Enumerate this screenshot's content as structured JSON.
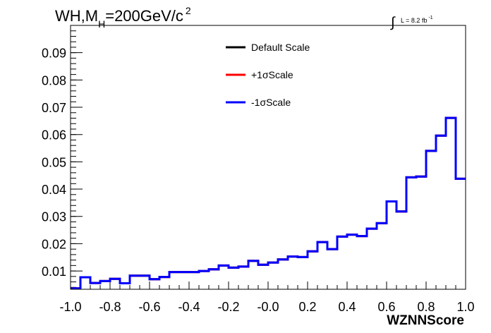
{
  "chart_data": {
    "type": "line",
    "title_parts": [
      "WH,M",
      "H",
      "=200GeV/c",
      "2"
    ],
    "lumi_parts": [
      "∫",
      "L = 8.2 fb",
      "-1"
    ],
    "xlabel": "WZNNScore",
    "ylabel": "",
    "xlim": [
      -1.0,
      1.0
    ],
    "ylim": [
      0.0033,
      0.1
    ],
    "x_ticks": [
      "-1.0",
      "-0.8",
      "-0.6",
      "-0.4",
      "-0.2",
      "-0.0",
      "0.2",
      "0.4",
      "0.6",
      "0.8",
      "1.0"
    ],
    "y_ticks": [
      "0.01",
      "0.02",
      "0.03",
      "0.04",
      "0.05",
      "0.06",
      "0.07",
      "0.08",
      "0.09"
    ],
    "grid": false,
    "legend_position": "top-center",
    "bin_edges": [
      -1.0,
      -0.95,
      -0.9,
      -0.85,
      -0.8,
      -0.75,
      -0.7,
      -0.65,
      -0.6,
      -0.55,
      -0.5,
      -0.45,
      -0.4,
      -0.35,
      -0.3,
      -0.25,
      -0.2,
      -0.15,
      -0.1,
      -0.05,
      0.0,
      0.05,
      0.1,
      0.15,
      0.2,
      0.25,
      0.3,
      0.35,
      0.4,
      0.45,
      0.5,
      0.55,
      0.6,
      0.65,
      0.7,
      0.75,
      0.8,
      0.85,
      0.9,
      0.95,
      1.0
    ],
    "series": [
      {
        "name": "Default Scale",
        "color": "#000000",
        "values": [
          0.0036,
          0.0077,
          0.0056,
          0.0063,
          0.0071,
          0.0055,
          0.0083,
          0.0083,
          0.007,
          0.0078,
          0.0096,
          0.0096,
          0.0096,
          0.01,
          0.0106,
          0.012,
          0.0112,
          0.0116,
          0.0137,
          0.0123,
          0.0131,
          0.0142,
          0.0153,
          0.0151,
          0.0172,
          0.0206,
          0.018,
          0.0226,
          0.0233,
          0.0228,
          0.0255,
          0.0275,
          0.0355,
          0.0318,
          0.0443,
          0.0446,
          0.054,
          0.0596,
          0.0661,
          0.0438
        ]
      },
      {
        "name": "+1σScale",
        "color": "#ff0000",
        "values": [
          0.0036,
          0.0077,
          0.0056,
          0.0063,
          0.0071,
          0.0055,
          0.0083,
          0.0083,
          0.007,
          0.0078,
          0.0096,
          0.0096,
          0.0096,
          0.01,
          0.0106,
          0.012,
          0.0112,
          0.0116,
          0.0137,
          0.0123,
          0.0131,
          0.0142,
          0.0153,
          0.0151,
          0.0172,
          0.0206,
          0.018,
          0.0226,
          0.0233,
          0.0228,
          0.0255,
          0.0275,
          0.0355,
          0.0318,
          0.0443,
          0.0446,
          0.054,
          0.0596,
          0.0661,
          0.0438
        ]
      },
      {
        "name": "-1σScale",
        "color": "#0000ff",
        "values": [
          0.0036,
          0.0077,
          0.0056,
          0.0063,
          0.0071,
          0.0055,
          0.0083,
          0.0083,
          0.007,
          0.0078,
          0.0096,
          0.0096,
          0.0096,
          0.01,
          0.0106,
          0.012,
          0.0112,
          0.0116,
          0.0137,
          0.0123,
          0.0131,
          0.0142,
          0.0153,
          0.0151,
          0.0172,
          0.0206,
          0.018,
          0.0226,
          0.0233,
          0.0228,
          0.0255,
          0.0275,
          0.0355,
          0.0318,
          0.0443,
          0.0446,
          0.054,
          0.0596,
          0.0661,
          0.0438
        ]
      }
    ]
  }
}
